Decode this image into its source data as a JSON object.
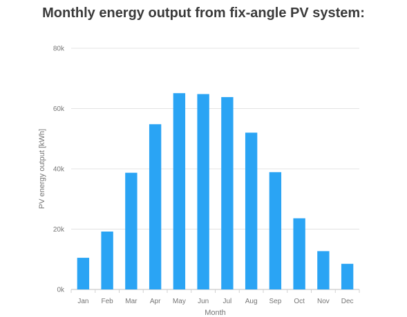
{
  "chart_data": {
    "type": "bar",
    "title": "Monthly energy output from fix-angle PV system:",
    "xlabel": "Month",
    "ylabel": "PV energy output [kWh]",
    "categories": [
      "Jan",
      "Feb",
      "Mar",
      "Apr",
      "May",
      "Jun",
      "Jul",
      "Aug",
      "Sep",
      "Oct",
      "Nov",
      "Dec"
    ],
    "values": [
      10500,
      19200,
      38700,
      54800,
      65100,
      64800,
      63800,
      52000,
      38900,
      23600,
      12700,
      8500
    ],
    "ylim": [
      0,
      80000
    ],
    "yticks": [
      0,
      20000,
      40000,
      60000,
      80000
    ],
    "ytick_labels": [
      "0k",
      "20k",
      "40k",
      "60k",
      "80k"
    ],
    "grid": true,
    "bar_color": "#2aa4f4",
    "grid_color": "#e3e3e3"
  }
}
